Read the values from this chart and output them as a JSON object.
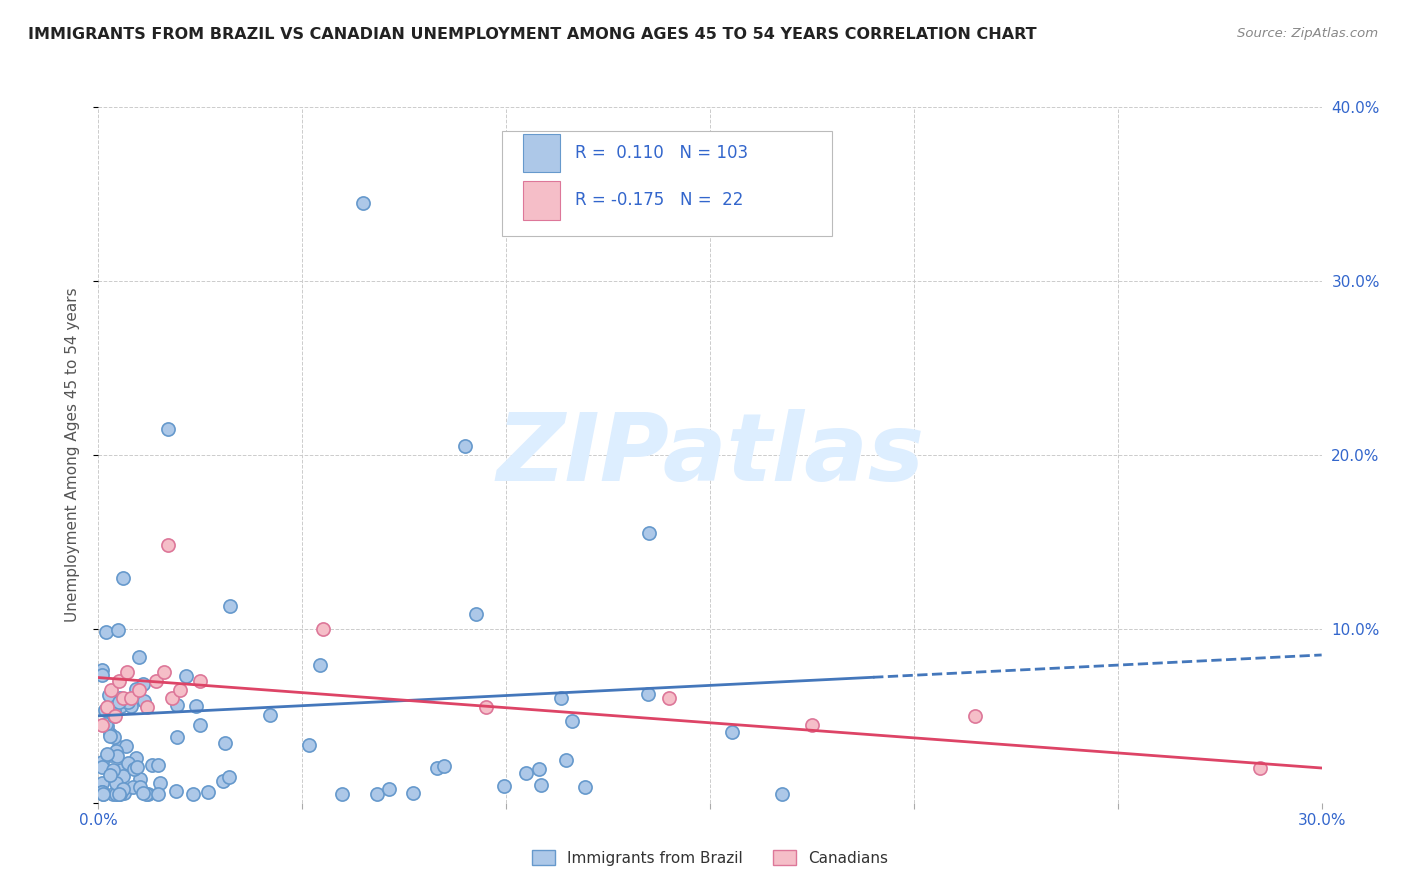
{
  "title": "IMMIGRANTS FROM BRAZIL VS CANADIAN UNEMPLOYMENT AMONG AGES 45 TO 54 YEARS CORRELATION CHART",
  "source": "Source: ZipAtlas.com",
  "ylabel_left": "Unemployment Among Ages 45 to 54 years",
  "xlim": [
    0.0,
    0.3
  ],
  "ylim": [
    0.0,
    0.4
  ],
  "xtick_positions": [
    0.0,
    0.05,
    0.1,
    0.15,
    0.2,
    0.25,
    0.3
  ],
  "xtick_labels": [
    "0.0%",
    "",
    "",
    "",
    "",
    "",
    "30.0%"
  ],
  "ytick_positions": [
    0.0,
    0.1,
    0.2,
    0.3,
    0.4
  ],
  "ytick_labels_right": [
    "",
    "10.0%",
    "20.0%",
    "30.0%",
    "40.0%"
  ],
  "brazil_color": "#adc8e8",
  "brazil_edge_color": "#6699cc",
  "canadian_color": "#f5bec8",
  "canadian_edge_color": "#dd7799",
  "trendline_brazil_color": "#4477bb",
  "trendline_canadian_color": "#dd4466",
  "legend_R_brazil": "0.110",
  "legend_N_brazil": "103",
  "legend_R_canadian": "-0.175",
  "legend_N_canadian": "22",
  "legend_text_color": "#3366cc",
  "background_color": "#ffffff",
  "grid_color": "#cccccc",
  "watermark_color": "#ddeeff",
  "title_color": "#222222",
  "source_color": "#888888",
  "axis_tick_color": "#3366cc",
  "ylabel_color": "#555555"
}
